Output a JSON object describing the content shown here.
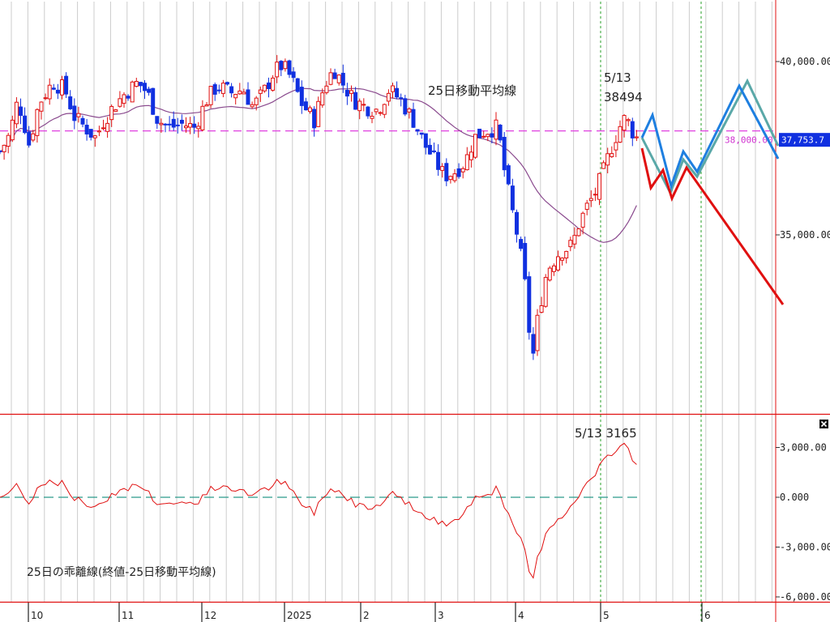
{
  "chart_data": [
    {
      "type": "candlestick",
      "title": "",
      "xlabel": "",
      "ylabel": "",
      "ylim": [
        29500,
        42000
      ],
      "ma_label": "25日移動平均線",
      "yticks": [
        {
          "value": 40000,
          "label": "40,000.00"
        },
        {
          "value": 35000,
          "label": "35,000.00"
        }
      ],
      "hline": {
        "value": 38000,
        "label": "38,000.00"
      },
      "last_price": {
        "value": 37753,
        "label": "37,753.7"
      },
      "annotation": {
        "date_label": "5/13",
        "value_label": "38494"
      },
      "scenarios": [
        {
          "color": "#5aa8a8",
          "points": [
            [
              792,
              170
            ],
            [
              827,
              238
            ],
            [
              843,
              197
            ],
            [
              860,
              218
            ],
            [
              922,
              100
            ],
            [
              960,
              180
            ]
          ]
        },
        {
          "color": "#1e7fe0",
          "points": [
            [
              792,
              170
            ],
            [
              805,
              142
            ],
            [
              828,
              230
            ],
            [
              843,
              187
            ],
            [
              860,
              212
            ],
            [
              912,
              106
            ],
            [
              960,
              196
            ]
          ]
        },
        {
          "color": "#e01010",
          "points": [
            [
              792,
              183
            ],
            [
              803,
              232
            ],
            [
              818,
              210
            ],
            [
              829,
              245
            ],
            [
              847,
              207
            ],
            [
              966,
              376
            ]
          ]
        }
      ]
    },
    {
      "type": "line",
      "title": "",
      "label": "25日の乖離線(終値-25日移動平均線)",
      "ylim": [
        -6300,
        4200
      ],
      "yticks": [
        {
          "value": 3000,
          "label": "3,000.00"
        },
        {
          "value": 0,
          "label": "0.000"
        },
        {
          "value": -3000,
          "label": "-3,000.00"
        },
        {
          "value": -6000,
          "label": "-6,000.00"
        }
      ],
      "annotation": {
        "label": "5/13 3165"
      }
    }
  ],
  "x_axis": {
    "ticks": [
      {
        "label": "10",
        "x": 35
      },
      {
        "label": "11",
        "x": 147
      },
      {
        "label": "12",
        "x": 249
      },
      {
        "label": "2025",
        "x": 351
      },
      {
        "label": "2",
        "x": 445
      },
      {
        "label": "3",
        "x": 537
      },
      {
        "label": "4",
        "x": 636
      },
      {
        "label": "5",
        "x": 741
      },
      {
        "label": "6",
        "x": 866
      }
    ]
  },
  "colors": {
    "up": "#e01010",
    "down": "#1030e0",
    "ma": "#8a4a8e",
    "hline": "#e040e0",
    "deviation": "#e01010",
    "zero": "#2a9a8a",
    "grid": "#cccccc",
    "frame": "#e01010",
    "price_box": "#1030e0"
  }
}
